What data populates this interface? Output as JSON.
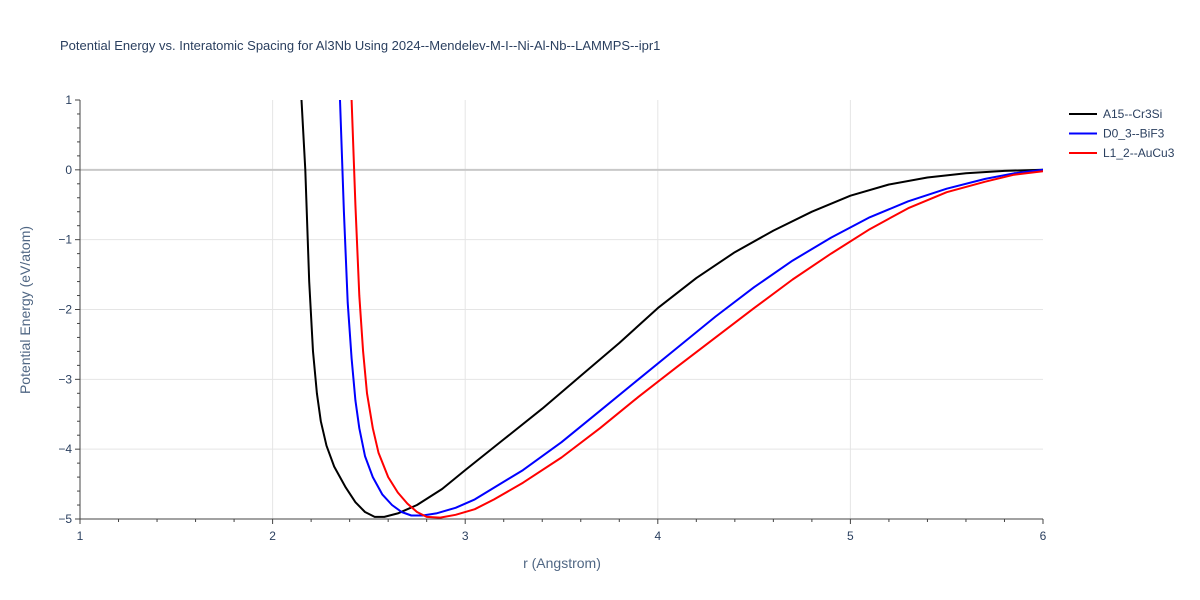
{
  "chart_data": {
    "type": "line",
    "title": "Potential Energy vs. Interatomic Spacing for Al3Nb Using 2024--Mendelev-M-I--Ni-Al-Nb--LAMMPS--ipr1",
    "xlabel": "r (Angstrom)",
    "ylabel": "Potential Energy (eV/atom)",
    "xlim": [
      1,
      6
    ],
    "ylim": [
      -5,
      1
    ],
    "x_ticks": [
      "1",
      "2",
      "3",
      "4",
      "5",
      "6"
    ],
    "y_ticks": [
      "1",
      "0",
      "−1",
      "−2",
      "−3",
      "−4",
      "−5"
    ],
    "grid": true,
    "legend_position": "right",
    "series": [
      {
        "name": "A15--Cr3Si",
        "color": "#000000",
        "points": [
          [
            2.15,
            1.0
          ],
          [
            2.17,
            0.0
          ],
          [
            2.19,
            -1.6
          ],
          [
            2.21,
            -2.6
          ],
          [
            2.23,
            -3.2
          ],
          [
            2.25,
            -3.6
          ],
          [
            2.28,
            -3.95
          ],
          [
            2.32,
            -4.25
          ],
          [
            2.38,
            -4.55
          ],
          [
            2.43,
            -4.76
          ],
          [
            2.48,
            -4.9
          ],
          [
            2.53,
            -4.97
          ],
          [
            2.58,
            -4.97
          ],
          [
            2.65,
            -4.92
          ],
          [
            2.75,
            -4.8
          ],
          [
            2.88,
            -4.57
          ],
          [
            3.0,
            -4.3
          ],
          [
            3.2,
            -3.86
          ],
          [
            3.4,
            -3.42
          ],
          [
            3.6,
            -2.95
          ],
          [
            3.8,
            -2.48
          ],
          [
            4.0,
            -1.98
          ],
          [
            4.2,
            -1.55
          ],
          [
            4.4,
            -1.18
          ],
          [
            4.6,
            -0.87
          ],
          [
            4.8,
            -0.6
          ],
          [
            5.0,
            -0.37
          ],
          [
            5.2,
            -0.21
          ],
          [
            5.4,
            -0.11
          ],
          [
            5.6,
            -0.05
          ],
          [
            5.8,
            -0.015
          ],
          [
            6.0,
            0.0
          ]
        ]
      },
      {
        "name": "D0_3--BiF3",
        "color": "#0000ff",
        "points": [
          [
            2.35,
            1.0
          ],
          [
            2.37,
            -0.6
          ],
          [
            2.39,
            -1.9
          ],
          [
            2.41,
            -2.7
          ],
          [
            2.43,
            -3.3
          ],
          [
            2.45,
            -3.7
          ],
          [
            2.48,
            -4.1
          ],
          [
            2.52,
            -4.4
          ],
          [
            2.57,
            -4.65
          ],
          [
            2.62,
            -4.8
          ],
          [
            2.67,
            -4.9
          ],
          [
            2.72,
            -4.95
          ],
          [
            2.78,
            -4.95
          ],
          [
            2.85,
            -4.92
          ],
          [
            2.95,
            -4.84
          ],
          [
            3.05,
            -4.72
          ],
          [
            3.15,
            -4.55
          ],
          [
            3.3,
            -4.3
          ],
          [
            3.5,
            -3.9
          ],
          [
            3.7,
            -3.45
          ],
          [
            3.9,
            -3.0
          ],
          [
            4.1,
            -2.55
          ],
          [
            4.3,
            -2.1
          ],
          [
            4.5,
            -1.68
          ],
          [
            4.7,
            -1.3
          ],
          [
            4.9,
            -0.97
          ],
          [
            5.1,
            -0.68
          ],
          [
            5.3,
            -0.45
          ],
          [
            5.5,
            -0.27
          ],
          [
            5.7,
            -0.13
          ],
          [
            5.85,
            -0.05
          ],
          [
            6.0,
            0.0
          ]
        ]
      },
      {
        "name": "L1_2--AuCu3",
        "color": "#ff0000",
        "points": [
          [
            2.41,
            1.0
          ],
          [
            2.43,
            -0.5
          ],
          [
            2.45,
            -1.8
          ],
          [
            2.47,
            -2.6
          ],
          [
            2.49,
            -3.2
          ],
          [
            2.52,
            -3.7
          ],
          [
            2.55,
            -4.05
          ],
          [
            2.6,
            -4.4
          ],
          [
            2.65,
            -4.62
          ],
          [
            2.7,
            -4.78
          ],
          [
            2.75,
            -4.9
          ],
          [
            2.8,
            -4.97
          ],
          [
            2.87,
            -4.98
          ],
          [
            2.95,
            -4.94
          ],
          [
            3.05,
            -4.86
          ],
          [
            3.15,
            -4.72
          ],
          [
            3.3,
            -4.48
          ],
          [
            3.5,
            -4.12
          ],
          [
            3.7,
            -3.7
          ],
          [
            3.9,
            -3.25
          ],
          [
            4.1,
            -2.82
          ],
          [
            4.3,
            -2.4
          ],
          [
            4.5,
            -1.98
          ],
          [
            4.7,
            -1.57
          ],
          [
            4.9,
            -1.2
          ],
          [
            5.1,
            -0.85
          ],
          [
            5.3,
            -0.55
          ],
          [
            5.5,
            -0.32
          ],
          [
            5.7,
            -0.17
          ],
          [
            5.85,
            -0.07
          ],
          [
            6.0,
            -0.02
          ]
        ]
      }
    ]
  }
}
